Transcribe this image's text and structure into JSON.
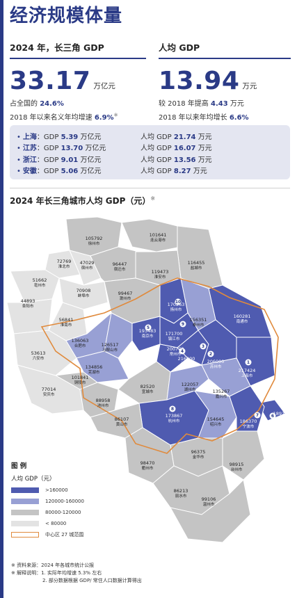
{
  "page_title": "经济规模体量",
  "left": {
    "header": "2024 年，长三角 GDP",
    "big_value": "33.17",
    "unit": "万亿元",
    "line1_prefix": "占全国的",
    "line1_value": "24.6%",
    "line2_prefix": "2018 年以来名义年均增速",
    "line2_value": "6.9%",
    "line2_note_mark": "※"
  },
  "right": {
    "header": "人均 GDP",
    "big_value": "13.94",
    "unit": "万元",
    "line1_prefix": "较 2018 年提高",
    "line1_value": "4.43",
    "line1_suffix": "万元",
    "line2_prefix": "2018 年以来年均增长",
    "line2_value": "6.6%"
  },
  "provinces": [
    {
      "name": "上海",
      "gdp_label": "GDP",
      "gdp": "5.39",
      "gdp_unit": "万亿元",
      "pc_label": "人均 GDP",
      "pc": "21.74",
      "pc_unit": "万元"
    },
    {
      "name": "江苏",
      "gdp_label": "GDP",
      "gdp": "13.70",
      "gdp_unit": "万亿元",
      "pc_label": "人均 GDP",
      "pc": "16.07",
      "pc_unit": "万元"
    },
    {
      "name": "浙江",
      "gdp_label": "GDP",
      "gdp": "9.01",
      "gdp_unit": "万亿元",
      "pc_label": "人均 GDP",
      "pc": "13.56",
      "pc_unit": "万元"
    },
    {
      "name": "安徽",
      "gdp_label": "GDP",
      "gdp": "5.06",
      "gdp_unit": "万亿元",
      "pc_label": "人均 GDP",
      "pc": "8.27",
      "pc_unit": "万元"
    }
  ],
  "map": {
    "title": "2024 年长三角城市人均 GDP（元）",
    "title_mark": "※",
    "colors": {
      "tier1": "#4f5bb0",
      "tier2": "#98a0d4",
      "tier3": "#c4c4c4",
      "tier4": "#e3e3e3",
      "core_border": "#e08a3c"
    },
    "cities": [
      {
        "name": "徐州市",
        "value": "105792",
        "tier": "tier3"
      },
      {
        "name": "连云港市",
        "value": "101641",
        "tier": "tier3"
      },
      {
        "name": "淮北市",
        "value": "72769",
        "tier": "tier4"
      },
      {
        "name": "宿州市",
        "value": "47029",
        "tier": "tier4"
      },
      {
        "name": "宿迁市",
        "value": "96447",
        "tier": "tier3"
      },
      {
        "name": "盐城市",
        "value": "116455",
        "tier": "tier3"
      },
      {
        "name": "亳州市",
        "value": "51662",
        "tier": "tier4"
      },
      {
        "name": "淮安市",
        "value": "119473",
        "tier": "tier3"
      },
      {
        "name": "蚌埠市",
        "value": "70908",
        "tier": "tier4"
      },
      {
        "name": "阜阳市",
        "value": "44893",
        "tier": "tier4"
      },
      {
        "name": "扬州市",
        "value": "170263",
        "tier": "tier1"
      },
      {
        "name": "滁州市",
        "value": "99467",
        "tier": "tier3"
      },
      {
        "name": "淮南市",
        "value": "56841",
        "tier": "tier4"
      },
      {
        "name": "南通市",
        "value": "160281",
        "tier": "tier1"
      },
      {
        "name": "泰州市",
        "value": "156351",
        "tier": "tier2"
      },
      {
        "name": "南京市",
        "value": "193483",
        "tier": "tier1"
      },
      {
        "name": "镇江市",
        "value": "171700",
        "tier": "tier1"
      },
      {
        "name": "合肥市",
        "value": "136063",
        "tier": "tier2"
      },
      {
        "name": "马鞍山市",
        "value": "126517",
        "tier": "tier2"
      },
      {
        "name": "常州市",
        "value": "200772",
        "tier": "tier1"
      },
      {
        "name": "六安市",
        "value": "53613",
        "tier": "tier4"
      },
      {
        "name": "无锡市",
        "value": "216800",
        "tier": "tier1"
      },
      {
        "name": "苏州市",
        "value": "206000",
        "tier": "tier1"
      },
      {
        "name": "上海市",
        "value": "217424",
        "tier": "tier1"
      },
      {
        "name": "芜湖市",
        "value": "134856",
        "tier": "tier2"
      },
      {
        "name": "铜陵市",
        "value": "101841",
        "tier": "tier3"
      },
      {
        "name": "宣城市",
        "value": "82520",
        "tier": "tier3"
      },
      {
        "name": "湖州市",
        "value": "122057",
        "tier": "tier2"
      },
      {
        "name": "嘉兴市",
        "value": "135267",
        "tier": "tier2"
      },
      {
        "name": "安庆市",
        "value": "77014",
        "tier": "tier4"
      },
      {
        "name": "池州市",
        "value": "88958",
        "tier": "tier3"
      },
      {
        "name": "杭州市",
        "value": "173867",
        "tier": "tier1"
      },
      {
        "name": "舟山市",
        "value": "189286",
        "tier": "tier1"
      },
      {
        "name": "黄山市",
        "value": "86107",
        "tier": "tier3"
      },
      {
        "name": "绍兴市",
        "value": "154645",
        "tier": "tier2"
      },
      {
        "name": "宁波市",
        "value": "186370",
        "tier": "tier1"
      },
      {
        "name": "金华市",
        "value": "96375",
        "tier": "tier3"
      },
      {
        "name": "衢州市",
        "value": "98470",
        "tier": "tier3"
      },
      {
        "name": "台州市",
        "value": "98915",
        "tier": "tier3"
      },
      {
        "name": "丽水市",
        "value": "86213",
        "tier": "tier3"
      },
      {
        "name": "温州市",
        "value": "99106",
        "tier": "tier3"
      }
    ],
    "badges": [
      "1",
      "2",
      "3",
      "4",
      "5",
      "6",
      "7",
      "8",
      "9",
      "10"
    ]
  },
  "legend": {
    "title": "图 例",
    "subtitle": "人均 GDP（元）",
    "items": [
      {
        "label": ">160000",
        "color": "#4f5bb0"
      },
      {
        "label": "120000-160000",
        "color": "#98a0d4"
      },
      {
        "label": "80000-120000",
        "color": "#c4c4c4"
      },
      {
        "label": "< 80000",
        "color": "#e3e3e3"
      },
      {
        "label": "中心区 27 城范围",
        "color": "#e08a3c"
      }
    ]
  },
  "notes": [
    "※ 资料来源：2024 年各城市统计公报",
    "※ 解释说明：1. 实际年均增速 5.3% 左右",
    "2. 部分数据根据 GDP/ 常住人口数据计算得出"
  ]
}
